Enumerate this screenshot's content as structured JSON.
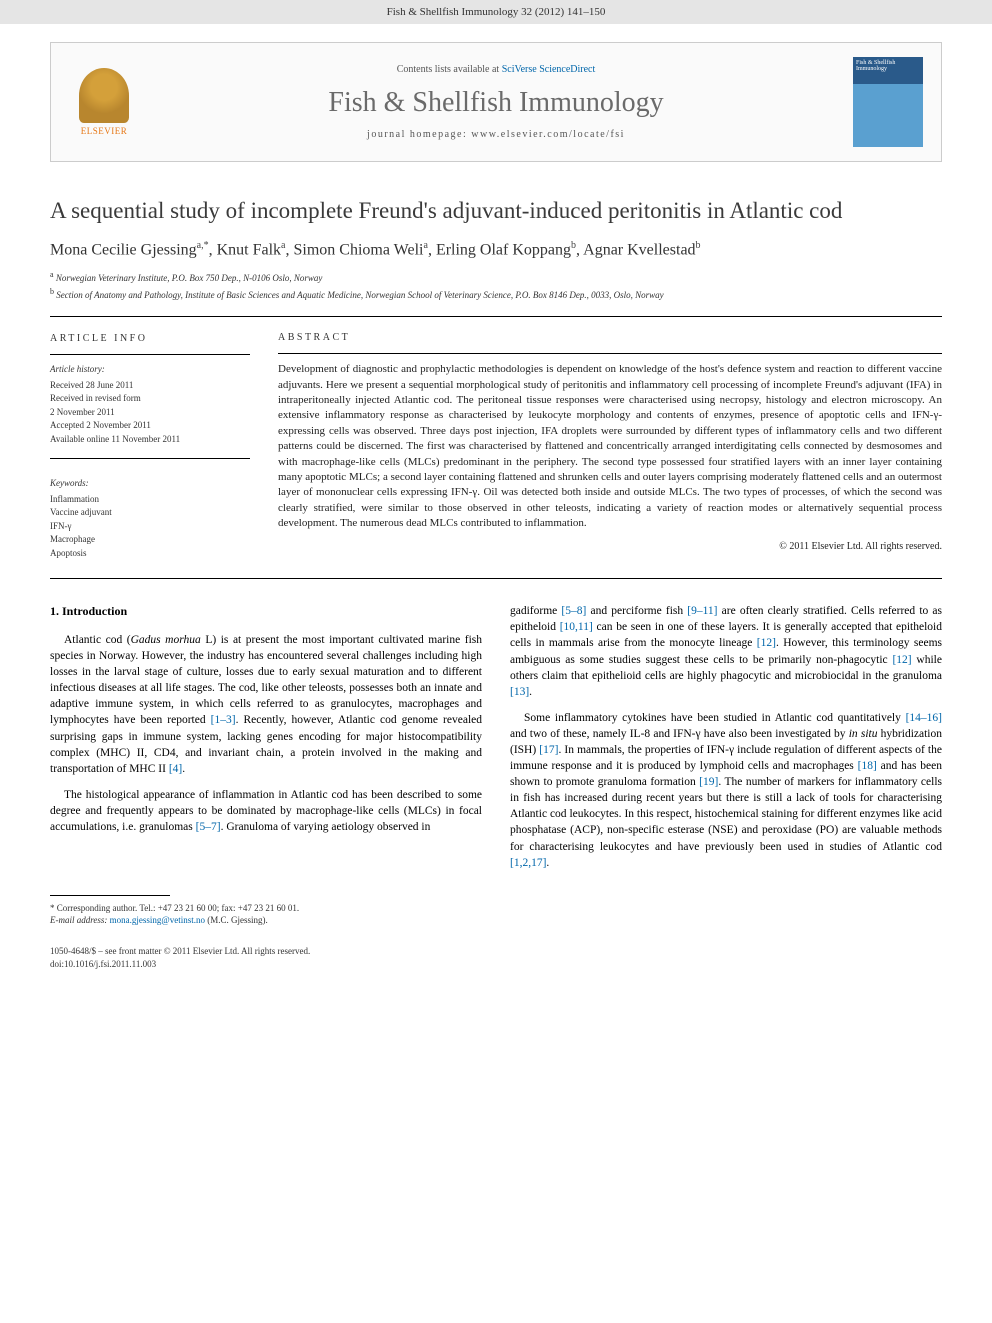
{
  "header_bar": "Fish & Shellfish Immunology 32 (2012) 141–150",
  "journal_header": {
    "publisher": "ELSEVIER",
    "contents_prefix": "Contents lists available at ",
    "contents_link": "SciVerse ScienceDirect",
    "journal_name": "Fish & Shellfish Immunology",
    "homepage_label": "journal homepage: ",
    "homepage_url": "www.elsevier.com/locate/fsi",
    "cover_title": "Fish & Shellfish Immunology"
  },
  "article": {
    "title": "A sequential study of incomplete Freund's adjuvant-induced peritonitis in Atlantic cod",
    "authors_html": "Mona Cecilie Gjessing",
    "authors": [
      {
        "name": "Mona Cecilie Gjessing",
        "sup": "a,*"
      },
      {
        "name": "Knut Falk",
        "sup": "a"
      },
      {
        "name": "Simon Chioma Weli",
        "sup": "a"
      },
      {
        "name": "Erling Olaf Koppang",
        "sup": "b"
      },
      {
        "name": "Agnar Kvellestad",
        "sup": "b"
      }
    ],
    "affiliations": [
      {
        "sup": "a",
        "text": "Norwegian Veterinary Institute, P.O. Box 750 Dep., N-0106 Oslo, Norway"
      },
      {
        "sup": "b",
        "text": "Section of Anatomy and Pathology, Institute of Basic Sciences and Aquatic Medicine, Norwegian School of Veterinary Science, P.O. Box 8146 Dep., 0033, Oslo, Norway"
      }
    ]
  },
  "article_info": {
    "heading": "ARTICLE INFO",
    "history_label": "Article history:",
    "history": [
      "Received 28 June 2011",
      "Received in revised form",
      "2 November 2011",
      "Accepted 2 November 2011",
      "Available online 11 November 2011"
    ],
    "keywords_label": "Keywords:",
    "keywords": [
      "Inflammation",
      "Vaccine adjuvant",
      "IFN-γ",
      "Macrophage",
      "Apoptosis"
    ]
  },
  "abstract": {
    "heading": "ABSTRACT",
    "text": "Development of diagnostic and prophylactic methodologies is dependent on knowledge of the host's defence system and reaction to different vaccine adjuvants. Here we present a sequential morphological study of peritonitis and inflammatory cell processing of incomplete Freund's adjuvant (IFA) in intraperitoneally injected Atlantic cod. The peritoneal tissue responses were characterised using necropsy, histology and electron microscopy. An extensive inflammatory response as characterised by leukocyte morphology and contents of enzymes, presence of apoptotic cells and IFN-γ-expressing cells was observed. Three days post injection, IFA droplets were surrounded by different types of inflammatory cells and two different patterns could be discerned. The first was characterised by flattened and concentrically arranged interdigitating cells connected by desmosomes and with macrophage-like cells (MLCs) predominant in the periphery. The second type possessed four stratified layers with an inner layer containing many apoptotic MLCs; a second layer containing flattened and shrunken cells and outer layers comprising moderately flattened cells and an outermost layer of mononuclear cells expressing IFN-γ. Oil was detected both inside and outside MLCs. The two types of processes, of which the second was clearly stratified, were similar to those observed in other teleosts, indicating a variety of reaction modes or alternatively sequential process development. The numerous dead MLCs contributed to inflammation.",
    "copyright": "© 2011 Elsevier Ltd. All rights reserved."
  },
  "body": {
    "section_num": "1.",
    "section_title": "Introduction",
    "col1_p1_pre": "Atlantic cod (",
    "col1_p1_species": "Gadus morhua",
    "col1_p1_post": " L) is at present the most important cultivated marine fish species in Norway. However, the industry has encountered several challenges including high losses in the larval stage of culture, losses due to early sexual maturation and to different infectious diseases at all life stages. The cod, like other teleosts, possesses both an innate and adaptive immune system, in which cells referred to as granulocytes, macrophages and lymphocytes have been reported ",
    "col1_p1_ref1": "[1–3]",
    "col1_p1_mid": ". Recently, however, Atlantic cod genome revealed surprising gaps in immune system, lacking genes encoding for major histocompatibility complex (MHC) II, CD4, and invariant chain, a protein involved in the making and transportation of MHC II ",
    "col1_p1_ref2": "[4]",
    "col1_p1_end": ".",
    "col1_p2_pre": "The histological appearance of inflammation in Atlantic cod has been described to some degree and frequently appears to be dominated by macrophage-like cells (MLCs) in focal accumulations, i.e. granulomas ",
    "col1_p2_ref1": "[5–7]",
    "col1_p2_post": ". Granuloma of varying aetiology observed in",
    "col2_p1_pre": "gadiforme ",
    "col2_p1_ref1": "[5–8]",
    "col2_p1_mid1": " and perciforme fish ",
    "col2_p1_ref2": "[9–11]",
    "col2_p1_mid2": " are often clearly stratified. Cells referred to as epitheloid ",
    "col2_p1_ref3": "[10,11]",
    "col2_p1_mid3": " can be seen in one of these layers. It is generally accepted that epitheloid cells in mammals arise from the monocyte lineage ",
    "col2_p1_ref4": "[12]",
    "col2_p1_mid4": ". However, this terminology seems ambiguous as some studies suggest these cells to be primarily non-phagocytic ",
    "col2_p1_ref5": "[12]",
    "col2_p1_mid5": " while others claim that epithelioid cells are highly phagocytic and microbiocidal in the granuloma ",
    "col2_p1_ref6": "[13]",
    "col2_p1_end": ".",
    "col2_p2_pre": "Some inflammatory cytokines have been studied in Atlantic cod quantitatively ",
    "col2_p2_ref1": "[14–16]",
    "col2_p2_mid1": " and two of these, namely IL-8 and IFN-γ have also been investigated by ",
    "col2_p2_insitu": "in situ",
    "col2_p2_mid2": " hybridization (ISH) ",
    "col2_p2_ref2": "[17]",
    "col2_p2_mid3": ". In mammals, the properties of IFN-γ include regulation of different aspects of the immune response and it is produced by lymphoid cells and macrophages ",
    "col2_p2_ref3": "[18]",
    "col2_p2_mid4": " and has been shown to promote granuloma formation ",
    "col2_p2_ref4": "[19]",
    "col2_p2_mid5": ". The number of markers for inflammatory cells in fish has increased during recent years but there is still a lack of tools for characterising Atlantic cod leukocytes. In this respect, histochemical staining for different enzymes like acid phosphatase (ACP), non-specific esterase (NSE) and peroxidase (PO) are valuable methods for characterising leukocytes and have previously been used in studies of Atlantic cod ",
    "col2_p2_ref5": "[1,2,17]",
    "col2_p2_end": "."
  },
  "footnote": {
    "corr_label": "* Corresponding author. Tel.: ",
    "tel": "+47 23 21 60 00",
    "fax_label": "; fax: ",
    "fax": "+47 23 21 60 01",
    "email_label": "E-mail address: ",
    "email": "mona.gjessing@vetinst.no",
    "email_post": " (M.C. Gjessing)."
  },
  "footer": {
    "issn": "1050-4648/$ – see front matter © 2011 Elsevier Ltd. All rights reserved.",
    "doi": "doi:10.1016/j.fsi.2011.11.003"
  },
  "colors": {
    "link": "#0066aa",
    "text": "#000000",
    "gray_text": "#6a6a6a",
    "elsevier_orange": "#e67817",
    "header_bg": "#e5e5e5"
  }
}
